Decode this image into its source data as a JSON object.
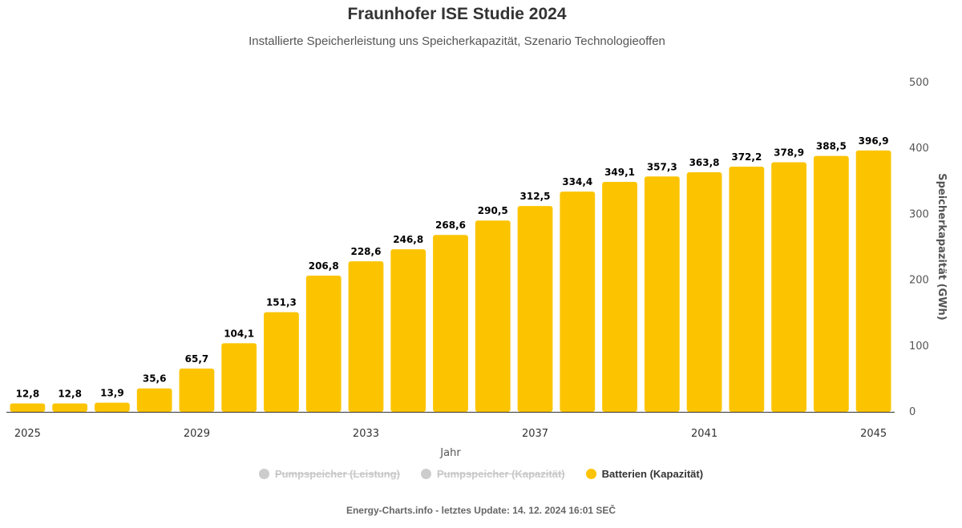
{
  "chart_data": {
    "type": "bar",
    "title": "Fraunhofer ISE Studie 2024",
    "subtitle": "Installierte Speicherleistung uns Speicherkapazität, Szenario Technologieoffen",
    "xlabel": "Jahr",
    "ylabel": "Speicherkapazität (GWh)",
    "ylim": [
      0,
      500
    ],
    "y_ticks": [
      0,
      100,
      200,
      300,
      400,
      500
    ],
    "x_tick_labels": [
      "2025",
      "2029",
      "2033",
      "2037",
      "2041",
      "2045"
    ],
    "y_axis_position": "right",
    "grid": false,
    "legend_position": "bottom",
    "categories": [
      "2025",
      "2026",
      "2027",
      "2028",
      "2029",
      "2030",
      "2031",
      "2032",
      "2033",
      "2034",
      "2035",
      "2036",
      "2037",
      "2038",
      "2039",
      "2040",
      "2041",
      "2042",
      "2043",
      "2044",
      "2045"
    ],
    "series": [
      {
        "name": "Batterien (Kapazität)",
        "color": "#FCC400",
        "values": [
          12.8,
          12.8,
          13.9,
          35.6,
          65.7,
          104.1,
          151.3,
          206.8,
          228.6,
          246.8,
          268.6,
          290.5,
          312.5,
          334.4,
          349.1,
          357.3,
          363.8,
          372.2,
          378.9,
          388.5,
          396.9
        ],
        "data_labels": [
          "12,8",
          "12,8",
          "13,9",
          "35,6",
          "65,7",
          "104,1",
          "151,3",
          "206,8",
          "228,6",
          "246,8",
          "268,6",
          "290,5",
          "312,5",
          "334,4",
          "349,1",
          "357,3",
          "363,8",
          "372,2",
          "378,9",
          "388,5",
          "396,9"
        ]
      }
    ]
  },
  "legend": {
    "items": [
      {
        "label": "Pumpspeicher (Leistung)",
        "state": "hidden",
        "color": "#cccccc"
      },
      {
        "label": "Pumpspeicher (Kapazität)",
        "state": "hidden",
        "color": "#cccccc"
      },
      {
        "label": "Batterien (Kapazität)",
        "state": "visible",
        "color": "#FCC400"
      }
    ]
  },
  "credits": "Energy-Charts.info - letztes Update: 14. 12. 2024 16:01 SEČ"
}
